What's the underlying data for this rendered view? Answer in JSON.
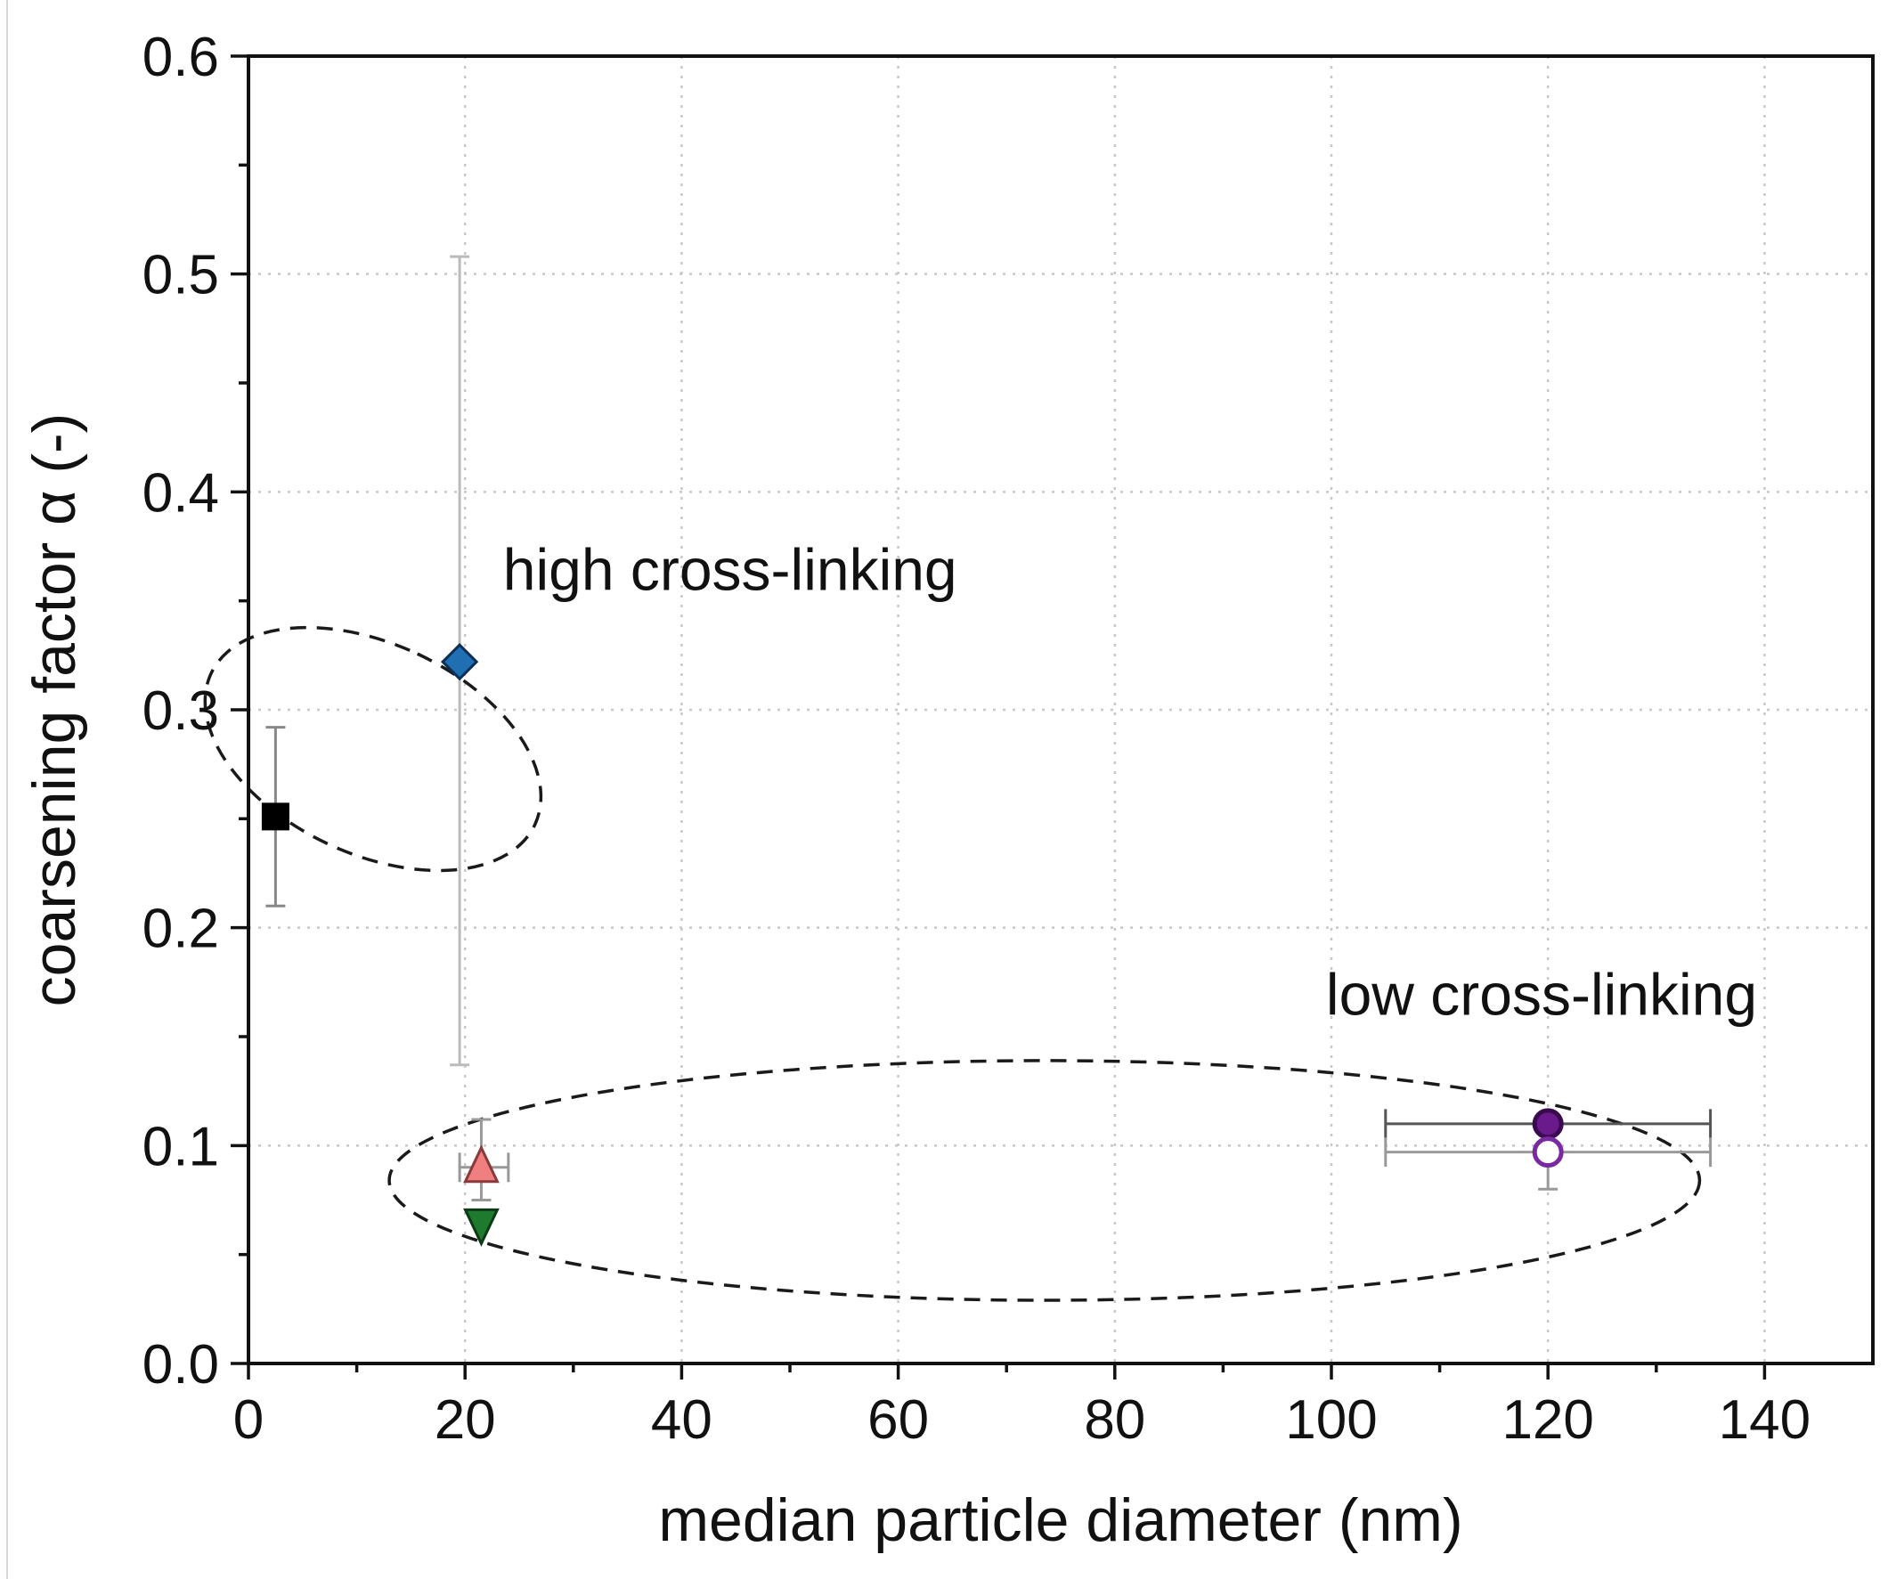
{
  "chart_data": {
    "type": "scatter",
    "title": "",
    "xlabel": "median particle diameter (nm)",
    "ylabel": "coarsening factor α (-)",
    "xlim": [
      0,
      150
    ],
    "ylim": [
      0,
      0.6
    ],
    "xticks": [
      0,
      20,
      40,
      60,
      80,
      100,
      120,
      140
    ],
    "xtick_labels": [
      "0",
      "20",
      "40",
      "60",
      "80",
      "100",
      "120",
      "140"
    ],
    "yticks": [
      0.0,
      0.1,
      0.2,
      0.3,
      0.4,
      0.5,
      0.6
    ],
    "ytick_labels": [
      "0.0",
      "0.1",
      "0.2",
      "0.3",
      "0.4",
      "0.5",
      "0.6"
    ],
    "grid": true,
    "series": [
      {
        "name": "square",
        "marker": "square",
        "fill": "#000000",
        "stroke": "#000000",
        "x": 2.5,
        "y": 0.251,
        "yerr": [
          0.21,
          0.292
        ],
        "err_color": "#888888"
      },
      {
        "name": "diamond",
        "marker": "diamond",
        "fill": "#1f6fb2",
        "stroke": "#0d2f55",
        "x": 19.5,
        "y": 0.322,
        "yerr": [
          0.137,
          0.508
        ],
        "err_color": "#bbbbbb"
      },
      {
        "name": "triangle-up",
        "marker": "triangle-up",
        "fill": "#f08080",
        "stroke": "#8a3a3a",
        "x": 21.5,
        "y": 0.09,
        "yerr": [
          0.075,
          0.112
        ],
        "xerr": [
          19.5,
          24
        ],
        "err_color": "#999999"
      },
      {
        "name": "triangle-down",
        "marker": "triangle-down",
        "fill": "#1e7a2e",
        "stroke": "#0c3a14",
        "x": 21.5,
        "y": 0.064,
        "err_color": "#999999"
      },
      {
        "name": "filled-circle",
        "marker": "circle",
        "fill": "#6a1a8a",
        "stroke": "#3a0a50",
        "x": 120,
        "y": 0.11,
        "xerr": [
          105,
          135
        ],
        "err_color": "#555555"
      },
      {
        "name": "open-circle",
        "marker": "circle",
        "fill": "#ffffff",
        "stroke": "#7a2aa0",
        "x": 120,
        "y": 0.097,
        "yerr": [
          0.08,
          0.113
        ],
        "xerr": [
          105,
          135
        ],
        "err_color": "#999999"
      }
    ],
    "annotations": [
      {
        "text": "high cross-linking",
        "x": 23.5,
        "y": 0.355
      },
      {
        "text": "low cross-linking",
        "x": 99.5,
        "y": 0.16
      }
    ],
    "groups": [
      {
        "name": "high cross-linking",
        "center": [
          11.5,
          0.282
        ],
        "radii": [
          9.7,
          0.082
        ],
        "rotation_deg": -65
      },
      {
        "name": "low cross-linking",
        "center": [
          73.5,
          0.084
        ],
        "radii": [
          60.5,
          0.055
        ],
        "rotation_deg": 0
      }
    ]
  }
}
